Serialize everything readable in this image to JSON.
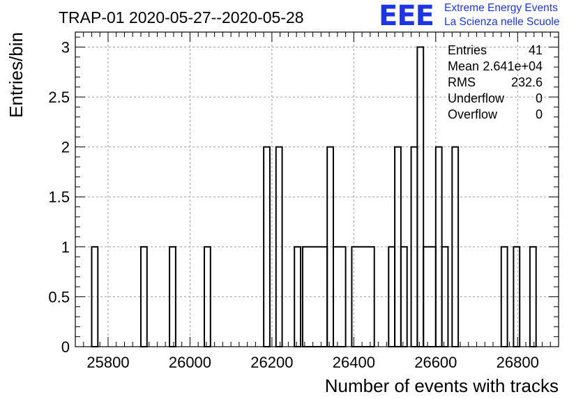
{
  "chart_data": {
    "type": "histogram",
    "title": "TRAP-01 2020-05-27--2020-05-28",
    "xlabel": "Number of events with tracks",
    "ylabel": "Entries/bin",
    "xlim": [
      25720,
      26900
    ],
    "ylim": [
      0,
      3.15
    ],
    "xticks": [
      25800,
      26000,
      26200,
      26400,
      26600,
      26800
    ],
    "yticks": [
      0,
      0.5,
      1,
      1.5,
      2,
      2.5,
      3
    ],
    "ytick_labels": [
      "0",
      "0.5",
      "1",
      "1.5",
      "2",
      "2.5",
      "3"
    ],
    "grid": true,
    "bins": [
      {
        "x0": 25760,
        "x1": 25775,
        "y": 1
      },
      {
        "x0": 25880,
        "x1": 25895,
        "y": 1
      },
      {
        "x0": 25950,
        "x1": 25965,
        "y": 1
      },
      {
        "x0": 26035,
        "x1": 26050,
        "y": 1
      },
      {
        "x0": 26180,
        "x1": 26195,
        "y": 2
      },
      {
        "x0": 26210,
        "x1": 26225,
        "y": 2
      },
      {
        "x0": 26255,
        "x1": 26270,
        "y": 1
      },
      {
        "x0": 26275,
        "x1": 26335,
        "y": 1
      },
      {
        "x0": 26335,
        "x1": 26350,
        "y": 2
      },
      {
        "x0": 26350,
        "x1": 26380,
        "y": 1
      },
      {
        "x0": 26395,
        "x1": 26450,
        "y": 1
      },
      {
        "x0": 26485,
        "x1": 26500,
        "y": 1
      },
      {
        "x0": 26500,
        "x1": 26515,
        "y": 2
      },
      {
        "x0": 26515,
        "x1": 26530,
        "y": 1
      },
      {
        "x0": 26540,
        "x1": 26555,
        "y": 2
      },
      {
        "x0": 26555,
        "x1": 26570,
        "y": 3
      },
      {
        "x0": 26570,
        "x1": 26600,
        "y": 1
      },
      {
        "x0": 26600,
        "x1": 26615,
        "y": 2
      },
      {
        "x0": 26615,
        "x1": 26630,
        "y": 1
      },
      {
        "x0": 26640,
        "x1": 26655,
        "y": 2
      },
      {
        "x0": 26760,
        "x1": 26775,
        "y": 1
      },
      {
        "x0": 26790,
        "x1": 26805,
        "y": 1
      },
      {
        "x0": 26830,
        "x1": 26845,
        "y": 1
      }
    ],
    "stats": {
      "labels": [
        "Entries",
        "Mean",
        "RMS",
        "Underflow",
        "Overflow"
      ],
      "values": [
        "41",
        "2.641e+04",
        "232.6",
        "0",
        "0"
      ]
    }
  },
  "logo": {
    "mark": "EEE",
    "line1": "Extreme Energy Events",
    "line2": "La Scienza nelle Scuole"
  },
  "colors": {
    "line": "#000000",
    "grid": "#a0a0a0",
    "logo": "#1d35e8"
  }
}
